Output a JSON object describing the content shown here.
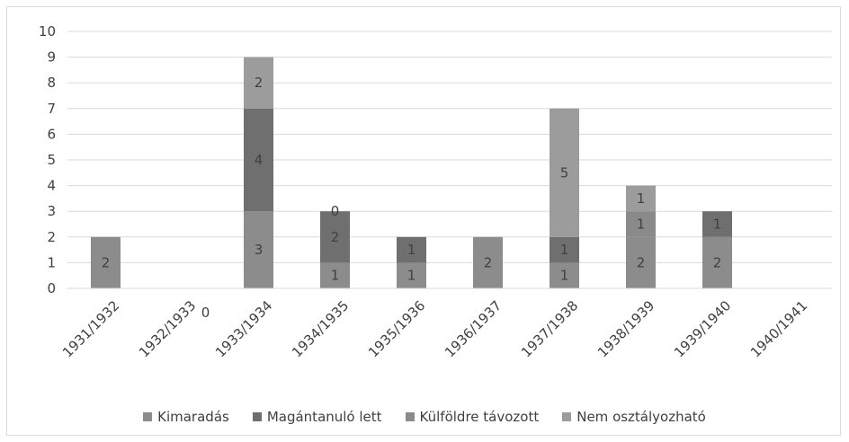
{
  "chart_data": {
    "type": "bar",
    "stacked": true,
    "title": "",
    "xlabel": "",
    "ylabel": "",
    "ylim": [
      0,
      10
    ],
    "yticks": [
      "0",
      "1",
      "2",
      "3",
      "4",
      "5",
      "6",
      "7",
      "8",
      "9",
      "10"
    ],
    "grid": true,
    "legend_position": "bottom",
    "categories": [
      "1931/1932",
      "1932/1933",
      "1933/1934",
      "1934/1935",
      "1935/1936",
      "1936/1937",
      "1937/1938",
      "1938/1939",
      "1939/1940",
      "1940/1941"
    ],
    "series": [
      {
        "name": "Kimaradás",
        "color": "#8c8c8c",
        "values": [
          2,
          0,
          3,
          1,
          1,
          2,
          1,
          2,
          2,
          0
        ],
        "labels": [
          "2",
          "0",
          "3",
          "1",
          "1",
          "2",
          "1",
          "2",
          "2",
          ""
        ]
      },
      {
        "name": "Magántanuló lett",
        "color": "#6f6f6f",
        "values": [
          0,
          0,
          4,
          2,
          1,
          0,
          1,
          0,
          1,
          0
        ],
        "labels": [
          "",
          "",
          "4",
          "2",
          "1",
          "",
          "1",
          "",
          "1",
          ""
        ]
      },
      {
        "name": "Külföldre távozott",
        "color": "#8a8a8a",
        "values": [
          0,
          0,
          0,
          0,
          0,
          0,
          0,
          1,
          0,
          0
        ],
        "labels": [
          "",
          "",
          "",
          "0",
          "",
          "",
          "",
          "1",
          "",
          ""
        ]
      },
      {
        "name": "Nem osztályozható",
        "color": "#9c9c9c",
        "values": [
          0,
          0,
          2,
          0,
          0,
          0,
          5,
          1,
          0,
          0
        ],
        "labels": [
          "",
          "",
          "2",
          "",
          "",
          "",
          "5",
          "1",
          "",
          ""
        ]
      }
    ]
  }
}
